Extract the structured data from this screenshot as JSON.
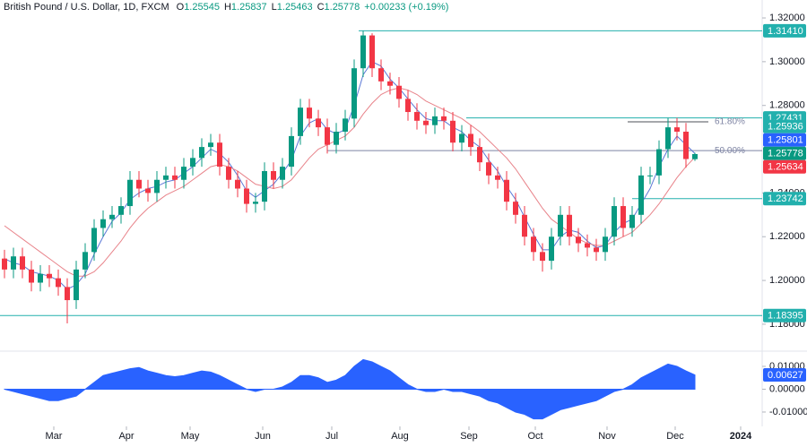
{
  "chart_data": {
    "type": "candlestick",
    "title": "British Pound / U.S. Dollar, 1D, FXCM",
    "ohlc_prefixes": [
      "O",
      "H",
      "L",
      "C"
    ],
    "change": "+0.00233 (+0.19%)",
    "up_color": "#089981",
    "down_color": "#f23645",
    "x": [
      0,
      1,
      2,
      3,
      4,
      5,
      6,
      7,
      8,
      9,
      10,
      11,
      12,
      13,
      14,
      15,
      16,
      17,
      18,
      19,
      20,
      21,
      22,
      23,
      24,
      25,
      26,
      27,
      28,
      29,
      30,
      31,
      32,
      33,
      34,
      35,
      36,
      37,
      38,
      39,
      40,
      41,
      42,
      43,
      44,
      45,
      46,
      47,
      48,
      49,
      50,
      51,
      52,
      53,
      54,
      55,
      56,
      57,
      58,
      59,
      60,
      61,
      62,
      63,
      64,
      65,
      66,
      67,
      68,
      69,
      70,
      71,
      72,
      73,
      74,
      75,
      76,
      77
    ],
    "open": [
      1.21,
      1.205,
      1.211,
      1.205,
      1.199,
      1.203,
      1.201,
      1.197,
      1.191,
      1.205,
      1.213,
      1.224,
      1.228,
      1.23,
      1.234,
      1.246,
      1.242,
      1.24,
      1.246,
      1.248,
      1.246,
      1.252,
      1.256,
      1.261,
      1.263,
      1.252,
      1.246,
      1.242,
      1.235,
      1.236,
      1.25,
      1.246,
      1.252,
      1.266,
      1.279,
      1.274,
      1.27,
      1.262,
      1.268,
      1.274,
      1.297,
      1.312,
      1.297,
      1.291,
      1.289,
      1.283,
      1.277,
      1.273,
      1.271,
      1.275,
      1.273,
      1.263,
      1.267,
      1.261,
      1.254,
      1.248,
      1.246,
      1.236,
      1.23,
      1.22,
      1.213,
      1.209,
      1.22,
      1.23,
      1.22,
      1.217,
      1.215,
      1.213,
      1.22,
      1.234,
      1.224,
      1.23,
      1.248,
      1.248,
      1.26,
      1.27,
      1.268,
      1.25545
    ],
    "high": [
      1.214,
      1.215,
      1.215,
      1.209,
      1.207,
      1.207,
      1.205,
      1.201,
      1.209,
      1.217,
      1.228,
      1.232,
      1.234,
      1.238,
      1.25,
      1.25,
      1.246,
      1.25,
      1.252,
      1.252,
      1.256,
      1.26,
      1.265,
      1.267,
      1.267,
      1.256,
      1.25,
      1.246,
      1.24,
      1.254,
      1.254,
      1.256,
      1.27,
      1.283,
      1.283,
      1.278,
      1.274,
      1.272,
      1.278,
      1.301,
      1.3141,
      1.313,
      1.301,
      1.295,
      1.293,
      1.287,
      1.281,
      1.277,
      1.279,
      1.279,
      1.277,
      1.271,
      1.271,
      1.265,
      1.258,
      1.252,
      1.25,
      1.24,
      1.234,
      1.224,
      1.217,
      1.224,
      1.234,
      1.234,
      1.224,
      1.221,
      1.219,
      1.224,
      1.238,
      1.238,
      1.234,
      1.252,
      1.252,
      1.264,
      1.2743,
      1.2743,
      1.272,
      1.25837
    ],
    "low": [
      1.201,
      1.201,
      1.201,
      1.195,
      1.195,
      1.197,
      1.193,
      1.1804,
      1.187,
      1.201,
      1.209,
      1.22,
      1.224,
      1.226,
      1.23,
      1.238,
      1.236,
      1.236,
      1.242,
      1.242,
      1.242,
      1.248,
      1.252,
      1.257,
      1.248,
      1.242,
      1.238,
      1.231,
      1.231,
      1.232,
      1.242,
      1.242,
      1.248,
      1.262,
      1.27,
      1.266,
      1.258,
      1.258,
      1.264,
      1.27,
      1.293,
      1.293,
      1.287,
      1.285,
      1.279,
      1.273,
      1.269,
      1.267,
      1.267,
      1.269,
      1.259,
      1.259,
      1.257,
      1.25,
      1.244,
      1.242,
      1.232,
      1.226,
      1.216,
      1.209,
      1.204,
      1.205,
      1.216,
      1.216,
      1.213,
      1.211,
      1.209,
      1.209,
      1.216,
      1.22,
      1.22,
      1.226,
      1.244,
      1.244,
      1.256,
      1.264,
      1.2515,
      1.25463
    ],
    "close": [
      1.205,
      1.211,
      1.205,
      1.199,
      1.203,
      1.201,
      1.197,
      1.191,
      1.205,
      1.213,
      1.224,
      1.228,
      1.23,
      1.234,
      1.246,
      1.242,
      1.24,
      1.246,
      1.248,
      1.246,
      1.252,
      1.256,
      1.261,
      1.263,
      1.252,
      1.246,
      1.242,
      1.235,
      1.236,
      1.25,
      1.246,
      1.252,
      1.266,
      1.279,
      1.274,
      1.27,
      1.262,
      1.268,
      1.274,
      1.297,
      1.312,
      1.297,
      1.291,
      1.289,
      1.283,
      1.277,
      1.273,
      1.271,
      1.275,
      1.273,
      1.263,
      1.267,
      1.261,
      1.254,
      1.248,
      1.246,
      1.236,
      1.23,
      1.22,
      1.213,
      1.209,
      1.22,
      1.23,
      1.22,
      1.217,
      1.215,
      1.213,
      1.22,
      1.234,
      1.224,
      1.23,
      1.248,
      1.248,
      1.26,
      1.27,
      1.268,
      1.2555,
      1.25778
    ],
    "series": [
      {
        "color": "#5b78d6",
        "values": [
          1.21,
          1.208,
          1.207,
          1.204,
          1.203,
          1.202,
          1.2,
          1.196,
          1.198,
          1.203,
          1.212,
          1.22,
          1.227,
          1.231,
          1.237,
          1.24,
          1.242,
          1.243,
          1.245,
          1.246,
          1.249,
          1.252,
          1.256,
          1.26,
          1.258,
          1.254,
          1.248,
          1.241,
          1.238,
          1.241,
          1.244,
          1.249,
          1.255,
          1.266,
          1.272,
          1.274,
          1.269,
          1.267,
          1.269,
          1.28,
          1.294,
          1.3,
          1.298,
          1.292,
          1.288,
          1.283,
          1.278,
          1.274,
          1.273,
          1.273,
          1.27,
          1.268,
          1.264,
          1.261,
          1.255,
          1.25,
          1.243,
          1.237,
          1.229,
          1.221,
          1.214,
          1.214,
          1.22,
          1.223,
          1.222,
          1.218,
          1.215,
          1.216,
          1.222,
          1.226,
          1.228,
          1.235,
          1.242,
          1.252,
          1.26,
          1.266,
          1.262,
          1.25801
        ]
      },
      {
        "color": "#e8838a",
        "values": [
          1.225,
          1.222,
          1.219,
          1.216,
          1.213,
          1.21,
          1.207,
          1.204,
          1.202,
          1.202,
          1.204,
          1.208,
          1.213,
          1.218,
          1.224,
          1.229,
          1.233,
          1.236,
          1.239,
          1.241,
          1.243,
          1.246,
          1.249,
          1.252,
          1.253,
          1.252,
          1.25,
          1.247,
          1.244,
          1.243,
          1.242,
          1.243,
          1.246,
          1.251,
          1.256,
          1.26,
          1.262,
          1.264,
          1.266,
          1.27,
          1.276,
          1.281,
          1.285,
          1.287,
          1.288,
          1.287,
          1.285,
          1.282,
          1.28,
          1.278,
          1.276,
          1.274,
          1.271,
          1.268,
          1.264,
          1.26,
          1.256,
          1.251,
          1.245,
          1.239,
          1.233,
          1.228,
          1.225,
          1.222,
          1.219,
          1.217,
          1.216,
          1.216,
          1.218,
          1.22,
          1.222,
          1.226,
          1.23,
          1.235,
          1.241,
          1.247,
          1.252,
          1.25634
        ]
      }
    ],
    "xlim": [
      -0.5,
      84.5
    ],
    "xticks": [
      {
        "value": 5.5,
        "label": "Mar"
      },
      {
        "value": 13.6,
        "label": "Apr"
      },
      {
        "value": 20.7,
        "label": "May"
      },
      {
        "value": 28.8,
        "label": "Jun"
      },
      {
        "value": 36.5,
        "label": "Jul"
      },
      {
        "value": 44.1,
        "label": "Aug"
      },
      {
        "value": 51.8,
        "label": "Sep"
      },
      {
        "value": 59.2,
        "label": "Oct"
      },
      {
        "value": 67.2,
        "label": "Nov"
      },
      {
        "value": 74.8,
        "label": "Dec"
      },
      {
        "value": 82.1,
        "label": "2024"
      }
    ],
    "ylim": [
      1.1685,
      1.3282
    ],
    "yticks": [
      {
        "value": 1.32,
        "label": "1.32000"
      },
      {
        "value": 1.3,
        "label": "1.30000"
      },
      {
        "value": 1.28,
        "label": "1.28000"
      },
      {
        "value": 1.24,
        "label": "1.24000"
      },
      {
        "value": 1.22,
        "label": "1.22000"
      },
      {
        "value": 1.2,
        "label": "1.20000"
      },
      {
        "value": 1.18,
        "label": "1.18000"
      }
    ],
    "levels": [
      {
        "value": 1.3141,
        "label": "1.31410",
        "x_start": 39.5
      },
      {
        "value": 1.27431,
        "label": "1.27431",
        "x_start": 51.5
      },
      {
        "value": 1.23742,
        "label": "1.23742",
        "x_start": 70
      },
      {
        "value": 1.18395,
        "label": "1.18395",
        "x_start": -0.5
      }
    ],
    "level_color": "#22b0ad",
    "fib_levels": [
      {
        "value": 1.2725,
        "label": "61.80%",
        "x_start": 69.5,
        "x_end": 78.5
      },
      {
        "value": 1.25936,
        "label": "50.00%",
        "x_start": 36,
        "x_end": 84.5
      }
    ],
    "fib_color": "#7e84a3",
    "markers": [
      {
        "value": 1.25936,
        "label": "1.25936",
        "color": "#22b0ad"
      },
      {
        "value": 1.25801,
        "label": "1.25801",
        "color": "#2962ff"
      },
      {
        "value": 1.25778,
        "label": "1.25778",
        "color": "#089981"
      },
      {
        "value": 1.25634,
        "label": "1.25634",
        "color": "#f23645"
      }
    ],
    "oscillator": {
      "color": "#2962ff",
      "values": [
        0,
        -0.001,
        -0.002,
        -0.003,
        -0.004,
        -0.005,
        -0.005,
        -0.004,
        -0.003,
        0,
        0.003,
        0.006,
        0.007,
        0.008,
        0.009,
        0.0095,
        0.008,
        0.007,
        0.006,
        0.0055,
        0.006,
        0.007,
        0.008,
        0.0075,
        0.006,
        0.004,
        0.002,
        0,
        -0.001,
        0,
        0,
        0.001,
        0.003,
        0.006,
        0.006,
        0.005,
        0.003,
        0.004,
        0.006,
        0.01,
        0.013,
        0.012,
        0.01,
        0.008,
        0.005,
        0.002,
        0,
        -0.001,
        -0.001,
        0,
        -0.001,
        -0.001,
        -0.002,
        -0.003,
        -0.005,
        -0.006,
        -0.008,
        -0.01,
        -0.011,
        -0.013,
        -0.013,
        -0.011,
        -0.009,
        -0.008,
        -0.007,
        -0.006,
        -0.005,
        -0.003,
        -0.001,
        0,
        0.002,
        0.005,
        0.007,
        0.009,
        0.011,
        0.01,
        0.008,
        0.00627
      ],
      "y2lim": [
        -0.0159,
        0.0155
      ],
      "y2ticks": [
        {
          "value": 0.01,
          "label": "0.01000"
        },
        {
          "value": 0,
          "label": "0.00000"
        },
        {
          "value": -0.01,
          "label": "-0.01000"
        }
      ],
      "marker": {
        "value": 0.00627,
        "label": "0.00627"
      }
    }
  }
}
